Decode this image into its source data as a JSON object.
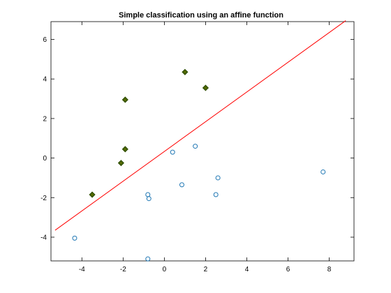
{
  "chart_data": {
    "type": "scatter",
    "title": "Simple classification using an affine function",
    "xlabel": "",
    "ylabel": "",
    "xlim": [
      -5.5,
      9.2
    ],
    "ylim": [
      -5.2,
      6.9
    ],
    "xticks": [
      -4,
      -2,
      0,
      2,
      4,
      6,
      8
    ],
    "yticks": [
      -4,
      -2,
      0,
      2,
      4,
      6
    ],
    "grid": false,
    "series": [
      {
        "marker": "filled-diamond",
        "color": "#556b00",
        "edge_color": "#2f4f00",
        "points": [
          [
            1.0,
            4.35
          ],
          [
            2.0,
            3.55
          ],
          [
            -1.9,
            2.95
          ],
          [
            -1.9,
            0.45
          ],
          [
            -2.1,
            -0.25
          ],
          [
            -3.5,
            -1.85
          ]
        ]
      },
      {
        "marker": "open-circle",
        "color": "#1f77b4",
        "points": [
          [
            1.5,
            0.6
          ],
          [
            0.4,
            0.3
          ],
          [
            2.6,
            -1.0
          ],
          [
            0.85,
            -1.35
          ],
          [
            -0.8,
            -1.85
          ],
          [
            -0.75,
            -2.05
          ],
          [
            2.5,
            -1.85
          ],
          [
            7.7,
            -0.7
          ],
          [
            -4.35,
            -4.05
          ],
          [
            -0.8,
            -5.1
          ]
        ]
      }
    ],
    "lines": [
      {
        "color": "#ff0000",
        "x": [
          -5.3,
          8.8
        ],
        "y": [
          -3.65,
          6.95
        ]
      }
    ]
  }
}
